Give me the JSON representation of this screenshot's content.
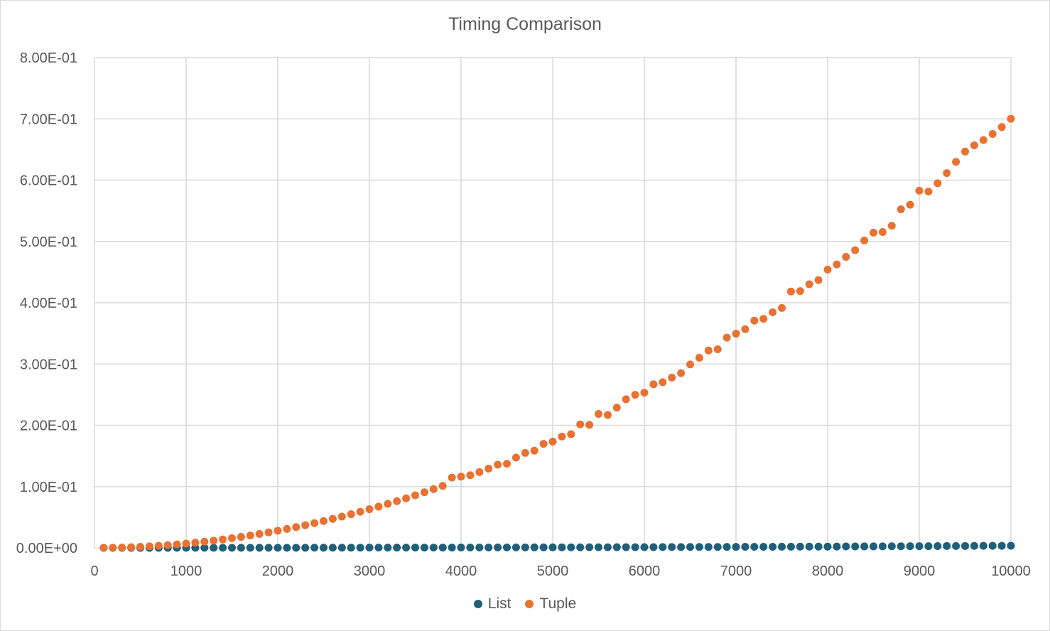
{
  "chart_data": {
    "type": "scatter",
    "title": "Timing Comparison",
    "xlim": [
      0,
      10000
    ],
    "ylim": [
      0,
      0.8
    ],
    "x_ticks": [
      "0",
      "1000",
      "2000",
      "3000",
      "4000",
      "5000",
      "6000",
      "7000",
      "8000",
      "9000",
      "10000"
    ],
    "y_ticks": [
      "0.00E+00",
      "1.00E-01",
      "2.00E-01",
      "3.00E-01",
      "4.00E-01",
      "5.00E-01",
      "6.00E-01",
      "7.00E-01",
      "8.00E-01"
    ],
    "grid": true,
    "legend_position": "bottom",
    "x": [
      100,
      200,
      300,
      400,
      500,
      600,
      700,
      800,
      900,
      1000,
      1100,
      1200,
      1300,
      1400,
      1500,
      1600,
      1700,
      1800,
      1900,
      2000,
      2100,
      2200,
      2300,
      2400,
      2500,
      2600,
      2700,
      2800,
      2900,
      3000,
      3100,
      3200,
      3300,
      3400,
      3500,
      3600,
      3700,
      3800,
      3900,
      4000,
      4100,
      4200,
      4300,
      4400,
      4500,
      4600,
      4700,
      4800,
      4900,
      5000,
      5100,
      5200,
      5300,
      5400,
      5500,
      5600,
      5700,
      5800,
      5900,
      6000,
      6100,
      6200,
      6300,
      6400,
      6500,
      6600,
      6700,
      6800,
      6900,
      7000,
      7100,
      7200,
      7300,
      7400,
      7500,
      7600,
      7700,
      7800,
      7900,
      8000,
      8100,
      8200,
      8300,
      8400,
      8500,
      8600,
      8700,
      8800,
      8900,
      9000,
      9100,
      9200,
      9300,
      9400,
      9500,
      9600,
      9700,
      9800,
      9900,
      10000
    ],
    "series": [
      {
        "name": "List",
        "color": "#1f5f7a",
        "values": [
          0.0,
          0.0,
          0.0,
          0.0,
          0.0,
          0.0,
          0.0,
          0.0,
          0.0001,
          0.0001,
          0.0001,
          0.0001,
          0.0001,
          0.0001,
          0.0001,
          0.0001,
          0.0001,
          0.0002,
          0.0002,
          0.0002,
          0.0002,
          0.0002,
          0.0002,
          0.0003,
          0.0003,
          0.0003,
          0.0003,
          0.0003,
          0.0003,
          0.0004,
          0.0004,
          0.0004,
          0.0004,
          0.0004,
          0.0005,
          0.0005,
          0.0005,
          0.0005,
          0.0005,
          0.0006,
          0.0006,
          0.0006,
          0.0006,
          0.0007,
          0.0007,
          0.0007,
          0.0007,
          0.0008,
          0.0008,
          0.0008,
          0.0009,
          0.0009,
          0.0009,
          0.001,
          0.001,
          0.001,
          0.0011,
          0.0011,
          0.0011,
          0.0012,
          0.0012,
          0.0013,
          0.0013,
          0.0013,
          0.0014,
          0.0014,
          0.0015,
          0.0015,
          0.0016,
          0.0016,
          0.0017,
          0.0017,
          0.0018,
          0.0018,
          0.0019,
          0.0019,
          0.002,
          0.002,
          0.0021,
          0.0021,
          0.0022,
          0.0023,
          0.0023,
          0.0024,
          0.0024,
          0.0025,
          0.0026,
          0.0026,
          0.0027,
          0.0028,
          0.0028,
          0.0029,
          0.003,
          0.003,
          0.0031,
          0.0032,
          0.0033,
          0.0033,
          0.0034,
          0.0035
        ]
      },
      {
        "name": "Tuple",
        "color": "#e97132",
        "values": [
          0.0001,
          0.0003,
          0.0006,
          0.0011,
          0.0018,
          0.0025,
          0.0034,
          0.0045,
          0.0057,
          0.007,
          0.0085,
          0.0101,
          0.0118,
          0.0137,
          0.0158,
          0.0179,
          0.0202,
          0.0227,
          0.0253,
          0.028,
          0.0309,
          0.0339,
          0.037,
          0.0403,
          0.0438,
          0.0473,
          0.051,
          0.0549,
          0.0589,
          0.063,
          0.0673,
          0.0717,
          0.0762,
          0.0809,
          0.0858,
          0.0907,
          0.0958,
          0.1011,
          0.1146,
          0.1162,
          0.1186,
          0.1236,
          0.1293,
          0.1356,
          0.1373,
          0.1472,
          0.155,
          0.1586,
          0.1697,
          0.1734,
          0.1816,
          0.1855,
          0.2015,
          0.2007,
          0.2185,
          0.2168,
          0.2288,
          0.2425,
          0.2497,
          0.2532,
          0.267,
          0.2703,
          0.2778,
          0.2851,
          0.2993,
          0.3101,
          0.3221,
          0.3241,
          0.3431,
          0.3495,
          0.3568,
          0.3707,
          0.3736,
          0.3843,
          0.3915,
          0.4183,
          0.419,
          0.4302,
          0.437,
          0.4541,
          0.4625,
          0.4748,
          0.4857,
          0.5016,
          0.5144,
          0.5154,
          0.5256,
          0.5524,
          0.5598,
          0.5828,
          0.5813,
          0.5949,
          0.6114,
          0.6299,
          0.6466,
          0.6568,
          0.6654,
          0.6753,
          0.6866,
          0.7002
        ]
      }
    ]
  }
}
